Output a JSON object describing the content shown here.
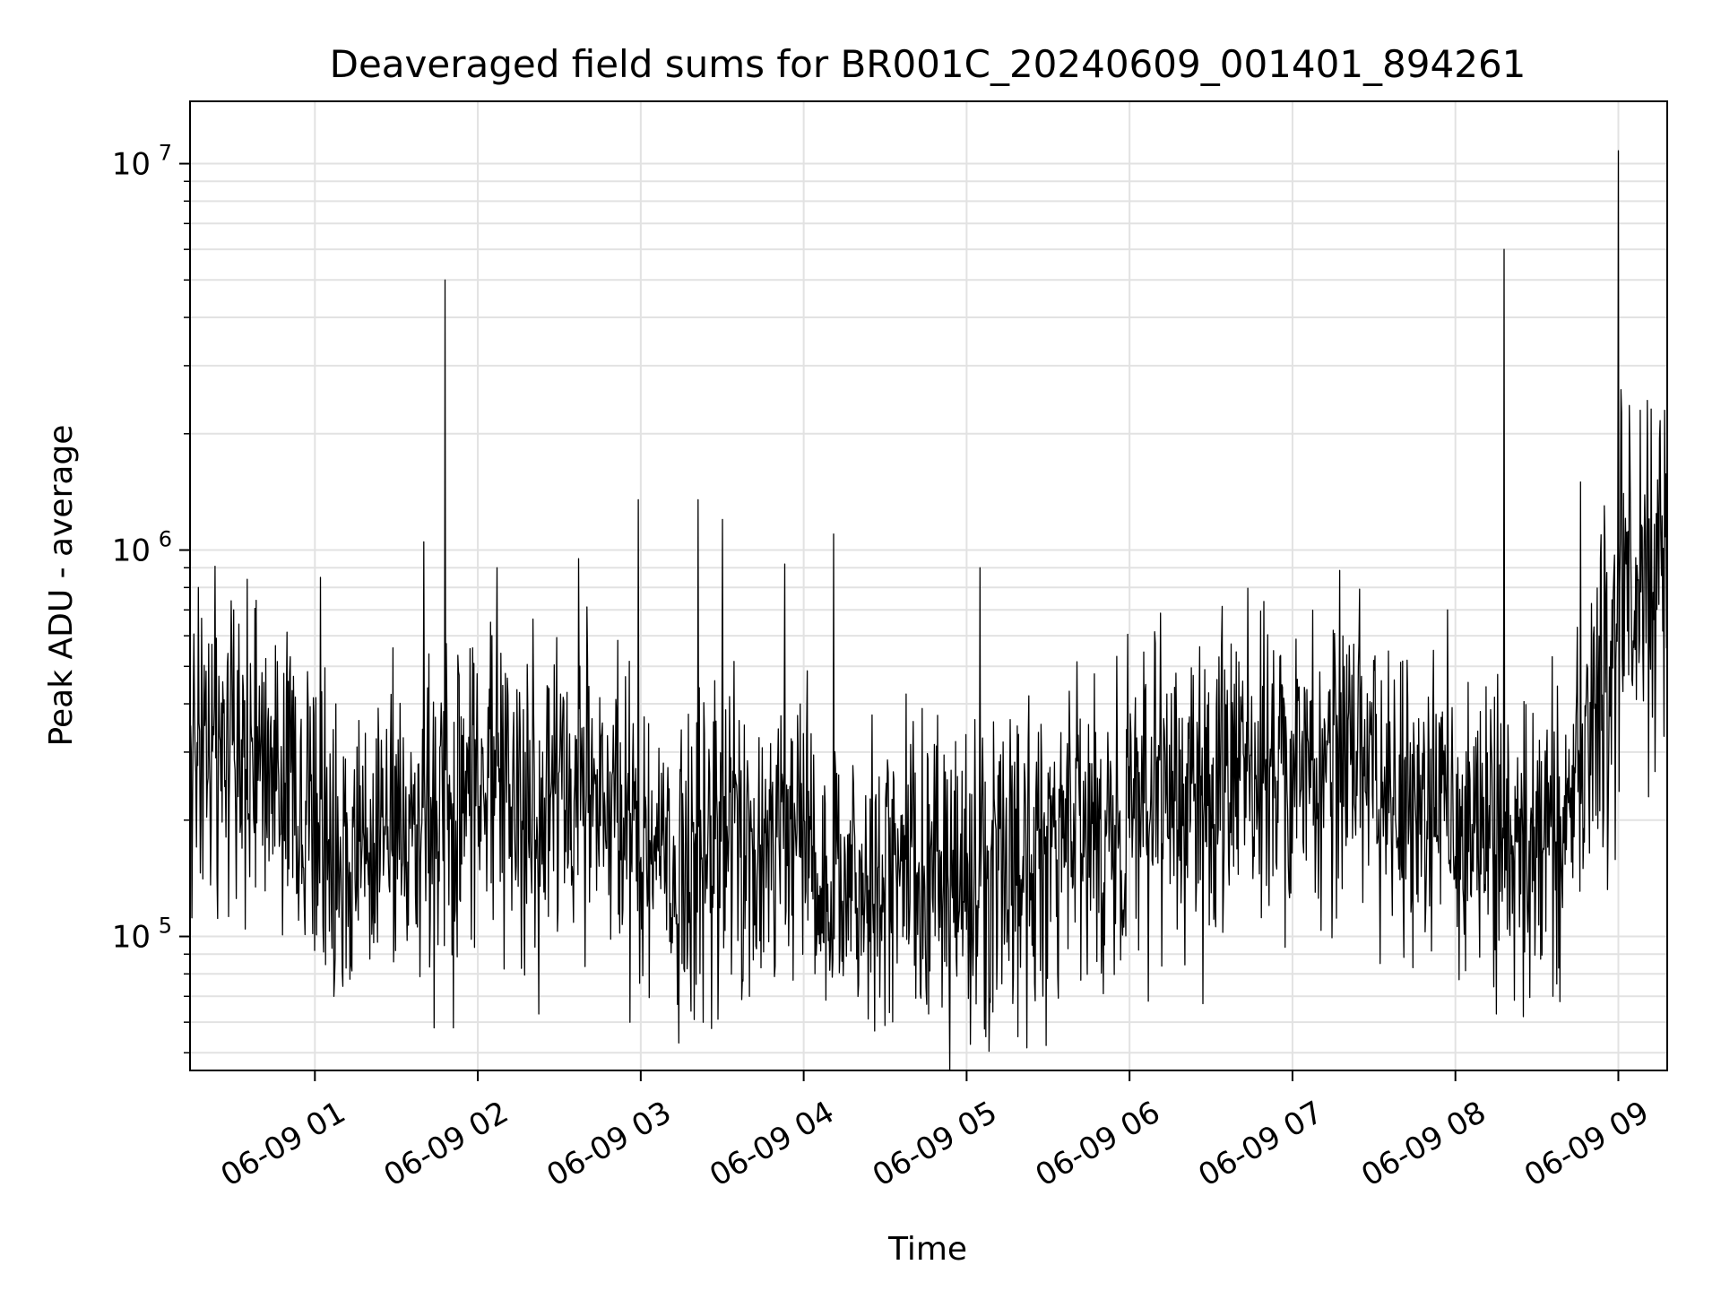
{
  "chart_data": {
    "type": "line",
    "title": "Deaveraged field sums for BR001C_20240609_001401_894261",
    "xlabel": "Time",
    "ylabel": "Peak ADU - average",
    "yscale": "log",
    "grid": true,
    "x_range": [
      "2024-06-09T00:14:01",
      "2024-06-09T09:18:00"
    ],
    "ylim": [
      45000,
      14500000
    ],
    "x_ticks": [
      "06-09 01",
      "06-09 02",
      "06-09 03",
      "06-09 04",
      "06-09 05",
      "06-09 06",
      "06-09 07",
      "06-09 08",
      "06-09 09"
    ],
    "y_ticks": [
      {
        "base": "10",
        "exp": "5",
        "value": 100000
      },
      {
        "base": "10",
        "exp": "6",
        "value": 1000000
      },
      {
        "base": "10",
        "exp": "7",
        "value": 10000000
      }
    ],
    "line_color": "#000000",
    "series": [
      {
        "points": [
          [
            "2024-06-09T00:14:01",
            290000
          ],
          [
            "2024-06-09T00:20:00",
            340000
          ],
          [
            "2024-06-09T00:30:00",
            300000
          ],
          [
            "2024-06-09T00:40:00",
            270000
          ],
          [
            "2024-06-09T00:50:00",
            230000
          ],
          [
            "2024-06-09T01:00:00",
            200000
          ],
          [
            "2024-06-09T01:10:00",
            150000
          ],
          [
            "2024-06-09T01:20:00",
            170000
          ],
          [
            "2024-06-09T01:30:00",
            190000
          ],
          [
            "2024-06-09T01:40:00",
            200000
          ],
          [
            "2024-06-09T01:50:00",
            260000
          ],
          [
            "2024-06-09T02:00:00",
            240000
          ],
          [
            "2024-06-09T02:10:00",
            220000
          ],
          [
            "2024-06-09T02:20:00",
            210000
          ],
          [
            "2024-06-09T02:30:00",
            240000
          ],
          [
            "2024-06-09T02:40:00",
            250000
          ],
          [
            "2024-06-09T02:50:00",
            220000
          ],
          [
            "2024-06-09T03:00:00",
            190000
          ],
          [
            "2024-06-09T03:10:00",
            160000
          ],
          [
            "2024-06-09T03:20:00",
            170000
          ],
          [
            "2024-06-09T03:30:00",
            180000
          ],
          [
            "2024-06-09T03:40:00",
            160000
          ],
          [
            "2024-06-09T03:50:00",
            170000
          ],
          [
            "2024-06-09T04:00:00",
            160000
          ],
          [
            "2024-06-09T04:10:00",
            150000
          ],
          [
            "2024-06-09T04:20:00",
            145000
          ],
          [
            "2024-06-09T04:30:00",
            140000
          ],
          [
            "2024-06-09T04:40:00",
            145000
          ],
          [
            "2024-06-09T04:50:00",
            150000
          ],
          [
            "2024-06-09T05:00:00",
            140000
          ],
          [
            "2024-06-09T05:10:00",
            150000
          ],
          [
            "2024-06-09T05:20:00",
            160000
          ],
          [
            "2024-06-09T05:30:00",
            175000
          ],
          [
            "2024-06-09T05:40:00",
            185000
          ],
          [
            "2024-06-09T05:50:00",
            195000
          ],
          [
            "2024-06-09T06:00:00",
            210000
          ],
          [
            "2024-06-09T06:10:00",
            230000
          ],
          [
            "2024-06-09T06:20:00",
            250000
          ],
          [
            "2024-06-09T06:30:00",
            260000
          ],
          [
            "2024-06-09T06:40:00",
            280000
          ],
          [
            "2024-06-09T06:50:00",
            300000
          ],
          [
            "2024-06-09T07:00:00",
            310000
          ],
          [
            "2024-06-09T07:10:00",
            290000
          ],
          [
            "2024-06-09T07:20:00",
            260000
          ],
          [
            "2024-06-09T07:30:00",
            240000
          ],
          [
            "2024-06-09T07:40:00",
            230000
          ],
          [
            "2024-06-09T07:50:00",
            220000
          ],
          [
            "2024-06-09T08:00:00",
            210000
          ],
          [
            "2024-06-09T08:10:00",
            190000
          ],
          [
            "2024-06-09T08:20:00",
            180000
          ],
          [
            "2024-06-09T08:30:00",
            175000
          ],
          [
            "2024-06-09T08:40:00",
            200000
          ],
          [
            "2024-06-09T08:50:00",
            300000
          ],
          [
            "2024-06-09T09:00:00",
            700000
          ],
          [
            "2024-06-09T09:10:00",
            800000
          ],
          [
            "2024-06-09T09:18:00",
            850000
          ]
        ],
        "spikes": [
          [
            "2024-06-09T00:17:00",
            800000
          ],
          [
            "2024-06-09T00:30:00",
            700000
          ],
          [
            "2024-06-09T01:02:00",
            850000
          ],
          [
            "2024-06-09T01:40:00",
            1050000
          ],
          [
            "2024-06-09T01:48:00",
            5000000
          ],
          [
            "2024-06-09T02:07:00",
            900000
          ],
          [
            "2024-06-09T02:37:00",
            950000
          ],
          [
            "2024-06-09T02:59:00",
            1350000
          ],
          [
            "2024-06-09T03:21:00",
            1350000
          ],
          [
            "2024-06-09T03:30:00",
            1200000
          ],
          [
            "2024-06-09T03:53:00",
            920000
          ],
          [
            "2024-06-09T04:11:00",
            1100000
          ],
          [
            "2024-06-09T05:05:00",
            900000
          ],
          [
            "2024-06-09T07:15:00",
            620000
          ],
          [
            "2024-06-09T07:57:00",
            700000
          ],
          [
            "2024-06-09T08:18:00",
            6000000
          ],
          [
            "2024-06-09T08:46:00",
            1500000
          ],
          [
            "2024-06-09T09:00:00",
            10800000
          ],
          [
            "2024-06-09T09:01:00",
            2600000
          ],
          [
            "2024-06-09T09:08:00",
            2300000
          ],
          [
            "2024-06-09T09:17:00",
            2300000
          ]
        ],
        "dips": [
          [
            "2024-06-09T01:00:00",
            92000
          ],
          [
            "2024-06-09T01:07:00",
            70000
          ],
          [
            "2024-06-09T01:44:00",
            58000
          ],
          [
            "2024-06-09T01:51:00",
            58000
          ],
          [
            "2024-06-09T02:56:00",
            60000
          ],
          [
            "2024-06-09T03:14:00",
            53000
          ],
          [
            "2024-06-09T03:23:00",
            60000
          ],
          [
            "2024-06-09T04:46:00",
            63000
          ],
          [
            "2024-06-09T05:07:00",
            55000
          ],
          [
            "2024-06-09T05:19:00",
            55000
          ],
          [
            "2024-06-09T06:07:00",
            68000
          ],
          [
            "2024-06-09T06:27:00",
            67000
          ],
          [
            "2024-06-09T08:15:00",
            63000
          ],
          [
            "2024-06-09T08:25:00",
            62000
          ],
          [
            "2024-06-09T08:36:00",
            70000
          ]
        ]
      }
    ]
  }
}
